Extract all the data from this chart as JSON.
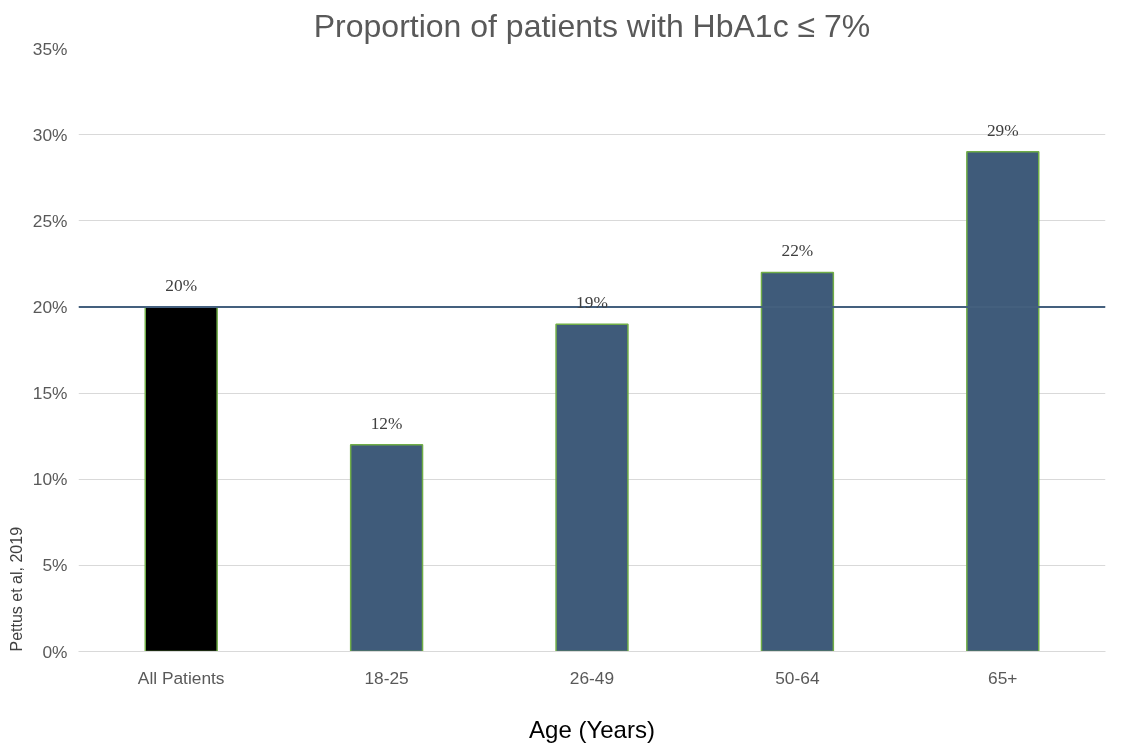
{
  "chart_data": {
    "type": "bar",
    "title": "Proportion of patients with HbA1c ≤ 7%",
    "xlabel": "Age (Years)",
    "categories": [
      "All Patients",
      "18-25",
      "26-49",
      "50-64",
      "65+"
    ],
    "values": [
      20,
      12,
      19,
      22,
      29
    ],
    "colors": [
      "#000000",
      "#3f5b7a",
      "#3f5b7a",
      "#3f5b7a",
      "#3f5b7a"
    ],
    "value_labels": [
      "20%",
      "12%",
      "19%",
      "22%",
      "29%"
    ],
    "ylim": [
      0,
      35
    ],
    "yticks": [
      {
        "value": 0,
        "label": "0%"
      },
      {
        "value": 5,
        "label": "5%"
      },
      {
        "value": 10,
        "label": "10%"
      },
      {
        "value": 15,
        "label": "15%"
      },
      {
        "value": 20,
        "label": "20%"
      },
      {
        "value": 25,
        "label": "25%"
      },
      {
        "value": 30,
        "label": "30%"
      },
      {
        "value": 35,
        "label": "35%"
      }
    ],
    "grid": "y",
    "ref_lines": [
      {
        "axis": "y",
        "value": 20,
        "label": null,
        "color": "#44607e"
      }
    ],
    "annotations": [
      "Pettus et al, 2019"
    ]
  }
}
